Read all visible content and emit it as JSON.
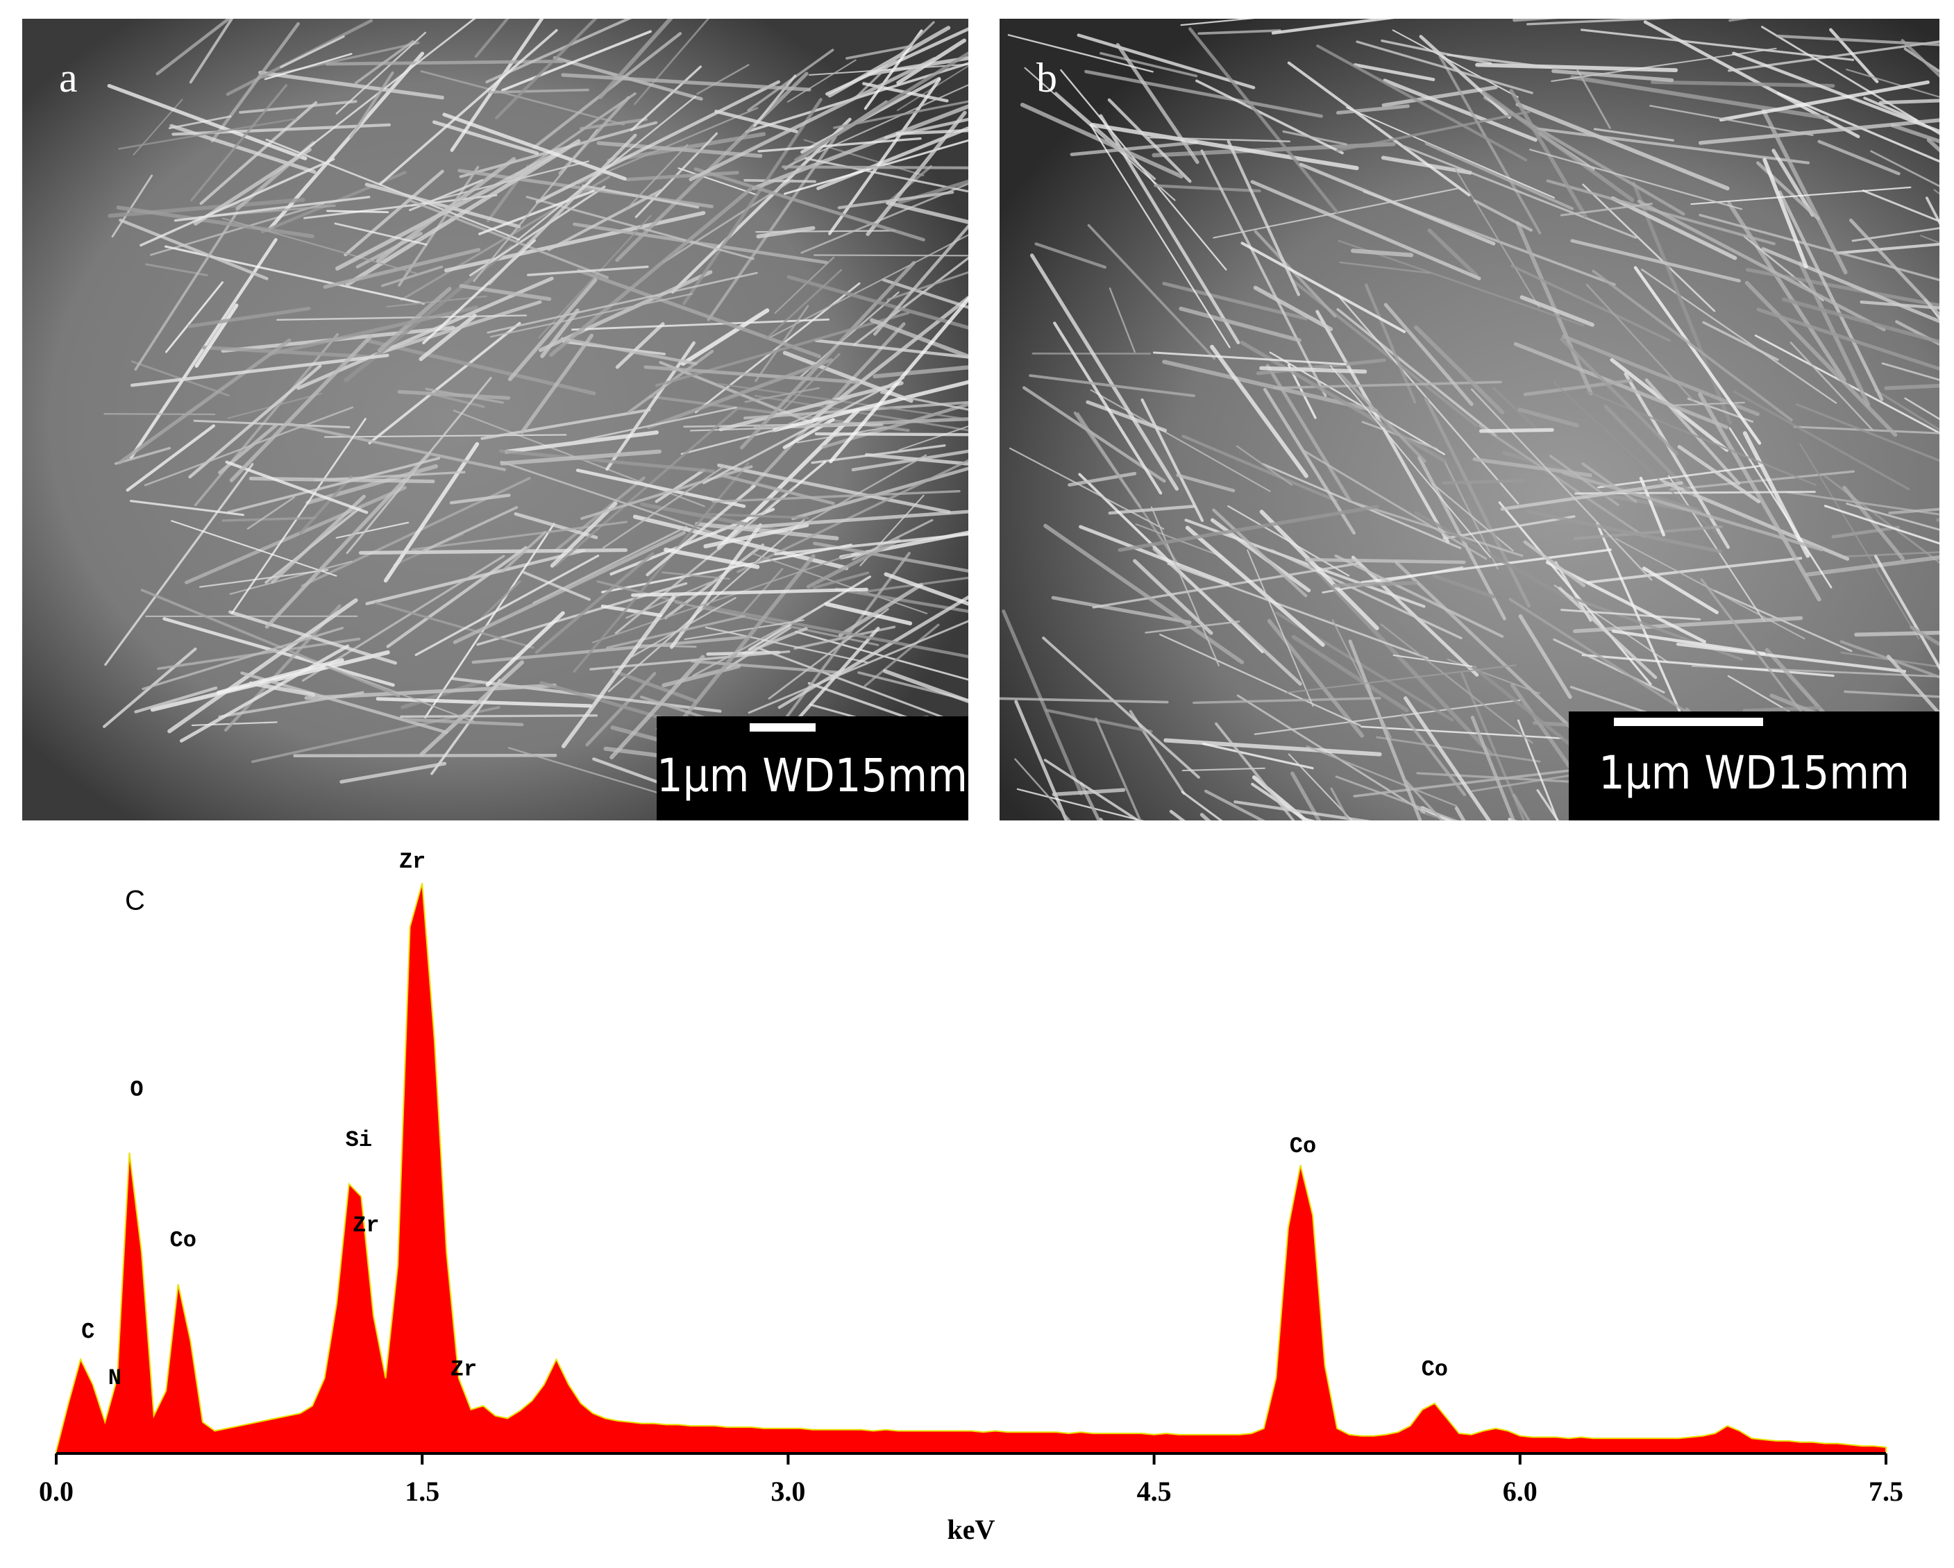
{
  "panels": [
    {
      "label": "a",
      "scale_bar": "1µm WD15mm"
    },
    {
      "label": "b",
      "scale_bar": "1µm WD15mm"
    }
  ],
  "chart_data": {
    "type": "area",
    "panel_label": "C",
    "xlabel": "keV",
    "color": "#ff0000",
    "edge_color": "#e8e000",
    "xlim": [
      0,
      7.5
    ],
    "xticks": [
      {
        "value": 0,
        "label": "0.0"
      },
      1.5,
      {
        "value": 3,
        "label": "3.0"
      },
      4.5,
      {
        "value": 6,
        "label": "6.0"
      },
      7.5
    ],
    "ylim": [
      0,
      500
    ],
    "x": [
      0,
      0.05,
      0.1,
      0.15,
      0.2,
      0.25,
      0.3,
      0.35,
      0.4,
      0.45,
      0.5,
      0.55,
      0.6,
      0.65,
      0.7,
      0.75,
      0.8,
      0.85,
      0.9,
      0.95,
      1,
      1.05,
      1.1,
      1.15,
      1.2,
      1.25,
      1.3,
      1.35,
      1.4,
      1.45,
      1.5,
      1.55,
      1.6,
      1.65,
      1.7,
      1.75,
      1.8,
      1.85,
      1.9,
      1.95,
      2,
      2.05,
      2.1,
      2.15,
      2.2,
      2.25,
      2.3,
      2.35,
      2.4,
      2.45,
      2.5,
      2.55,
      2.6,
      2.65,
      2.7,
      2.75,
      2.8,
      2.85,
      2.9,
      2.95,
      3,
      3.05,
      3.1,
      3.15,
      3.2,
      3.25,
      3.3,
      3.35,
      3.4,
      3.45,
      3.5,
      3.55,
      3.6,
      3.65,
      3.7,
      3.75,
      3.8,
      3.85,
      3.9,
      3.95,
      4,
      4.05,
      4.1,
      4.15,
      4.2,
      4.25,
      4.3,
      4.35,
      4.4,
      4.45,
      4.5,
      4.55,
      4.6,
      4.65,
      4.7,
      4.75,
      4.8,
      4.85,
      4.9,
      4.95,
      5,
      5.05,
      5.1,
      5.15,
      5.2,
      5.25,
      5.3,
      5.35,
      5.4,
      5.45,
      5.5,
      5.55,
      5.6,
      5.65,
      5.7,
      5.75,
      5.8,
      5.85,
      5.9,
      5.95,
      6,
      6.05,
      6.1,
      6.15,
      6.2,
      6.25,
      6.3,
      6.35,
      6.4,
      6.45,
      6.5,
      6.55,
      6.6,
      6.65,
      6.7,
      6.75,
      6.8,
      6.85,
      6.9,
      6.95,
      7,
      7.05,
      7.1,
      7.15,
      7.2,
      7.25,
      7.3,
      7.35,
      7.4,
      7.45,
      7.5
    ],
    "values": [
      2,
      40,
      75,
      55,
      25,
      60,
      240,
      160,
      30,
      50,
      135,
      90,
      25,
      18,
      20,
      22,
      24,
      26,
      28,
      30,
      32,
      38,
      60,
      120,
      215,
      205,
      110,
      60,
      150,
      420,
      455,
      330,
      160,
      60,
      35,
      38,
      30,
      28,
      34,
      42,
      55,
      75,
      55,
      40,
      32,
      28,
      26,
      25,
      24,
      24,
      23,
      23,
      22,
      22,
      22,
      21,
      21,
      21,
      20,
      20,
      20,
      20,
      19,
      19,
      19,
      19,
      19,
      18,
      19,
      18,
      18,
      18,
      18,
      18,
      18,
      18,
      17,
      18,
      17,
      17,
      17,
      17,
      17,
      16,
      17,
      16,
      16,
      16,
      16,
      16,
      15,
      16,
      15,
      15,
      15,
      15,
      15,
      15,
      16,
      20,
      60,
      180,
      230,
      190,
      70,
      20,
      15,
      14,
      14,
      15,
      17,
      22,
      35,
      40,
      28,
      16,
      15,
      18,
      20,
      18,
      14,
      13,
      13,
      13,
      12,
      13,
      12,
      12,
      12,
      12,
      12,
      12,
      12,
      12,
      13,
      14,
      16,
      22,
      18,
      12,
      11,
      10,
      10,
      9,
      9,
      8,
      8,
      7,
      6,
      6,
      5
    ],
    "annotations": [
      {
        "text": "C",
        "x": 0.13,
        "y": 97
      },
      {
        "text": "N",
        "x": 0.24,
        "y": 60
      },
      {
        "text": "O",
        "x": 0.33,
        "y": 290
      },
      {
        "text": "Co",
        "x": 0.52,
        "y": 170
      },
      {
        "text": "Si",
        "x": 1.24,
        "y": 250
      },
      {
        "text": "Zr",
        "x": 1.27,
        "y": 182
      },
      {
        "text": "Zr",
        "x": 1.46,
        "y": 472
      },
      {
        "text": "Zr",
        "x": 1.67,
        "y": 67
      },
      {
        "text": "Co",
        "x": 5.11,
        "y": 245
      },
      {
        "text": "Co",
        "x": 5.65,
        "y": 67
      }
    ]
  }
}
